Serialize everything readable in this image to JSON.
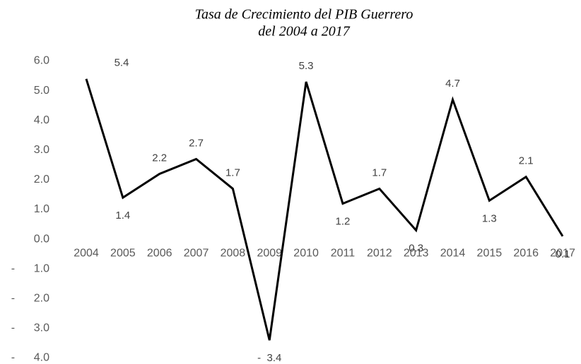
{
  "chart_data": {
    "type": "line",
    "title": [
      "Tasa de Crecimiento del PIB Guerrero",
      "del 2004 a 2017"
    ],
    "categories": [
      "2004",
      "2005",
      "2006",
      "2007",
      "2008",
      "2009",
      "2010",
      "2011",
      "2012",
      "2013",
      "2014",
      "2015",
      "2016",
      "2017"
    ],
    "values": [
      5.4,
      1.4,
      2.2,
      2.7,
      1.7,
      -3.4,
      5.3,
      1.2,
      1.7,
      0.3,
      4.7,
      1.3,
      2.1,
      0.1
    ],
    "value_labels": [
      "5.4",
      "1.4",
      "2.2",
      "2.7",
      "1.7",
      "-  3.4",
      "5.3",
      "1.2",
      "1.7",
      "0.3",
      "4.7",
      "1.3",
      "2.1",
      "0.1"
    ],
    "color": "#000000",
    "ylim": [
      -4,
      6
    ],
    "yticks": [
      {
        "value": 6,
        "label": "6.0"
      },
      {
        "value": 5,
        "label": "5.0"
      },
      {
        "value": 4,
        "label": "4.0"
      },
      {
        "value": 3,
        "label": "3.0"
      },
      {
        "value": 2,
        "label": "2.0"
      },
      {
        "value": 1,
        "label": "1.0"
      },
      {
        "value": 0,
        "label": "0.0"
      },
      {
        "value": -1,
        "label": "-      1.0"
      },
      {
        "value": -2,
        "label": "-      2.0"
      },
      {
        "value": -3,
        "label": "-      3.0"
      },
      {
        "value": -4,
        "label": "-      4.0"
      }
    ],
    "grid": false
  }
}
